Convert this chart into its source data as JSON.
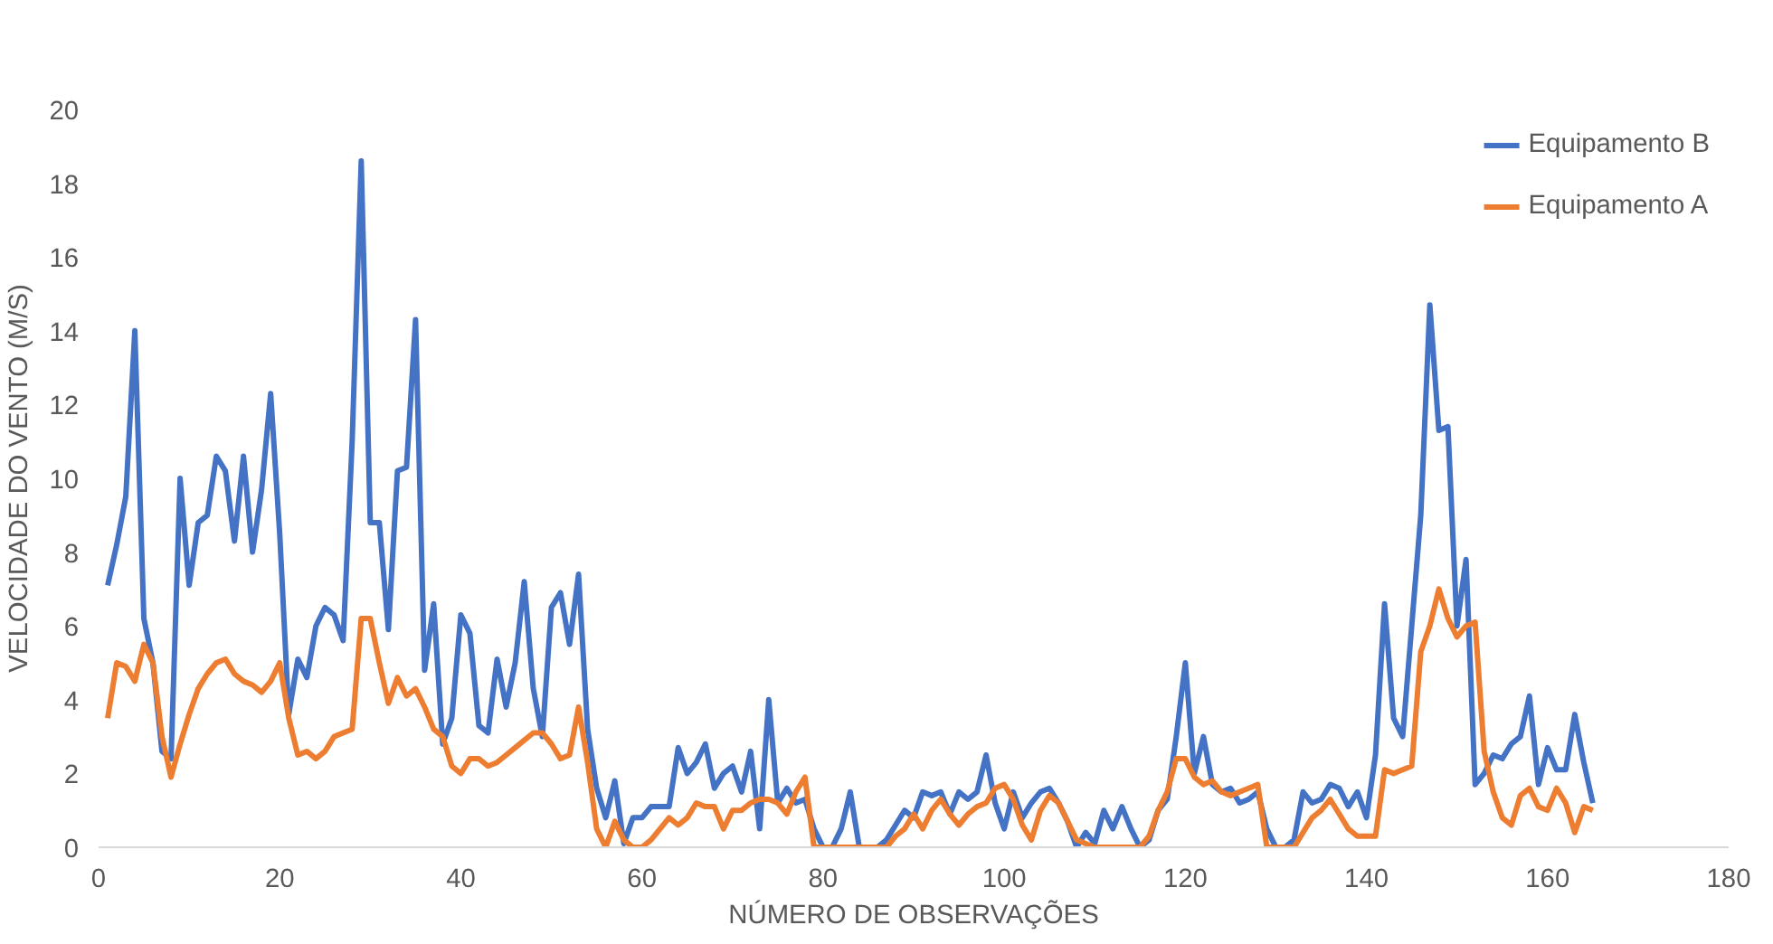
{
  "chart_data": {
    "type": "line",
    "xlabel": "NÚMERO DE OBSERVAÇÕES",
    "ylabel": "VELOCIDADE DO VENTO (M/S)",
    "x": [
      1,
      2,
      3,
      4,
      5,
      6,
      7,
      8,
      9,
      10,
      11,
      12,
      13,
      14,
      15,
      16,
      17,
      18,
      19,
      20,
      21,
      22,
      23,
      24,
      25,
      26,
      27,
      28,
      29,
      30,
      31,
      32,
      33,
      34,
      35,
      36,
      37,
      38,
      39,
      40,
      41,
      42,
      43,
      44,
      45,
      46,
      47,
      48,
      49,
      50,
      51,
      52,
      53,
      54,
      55,
      56,
      57,
      58,
      59,
      60,
      61,
      62,
      63,
      64,
      65,
      66,
      67,
      68,
      69,
      70,
      71,
      72,
      73,
      74,
      75,
      76,
      77,
      78,
      79,
      80,
      81,
      82,
      83,
      84,
      85,
      86,
      87,
      88,
      89,
      90,
      91,
      92,
      93,
      94,
      95,
      96,
      97,
      98,
      99,
      100,
      101,
      102,
      103,
      104,
      105,
      106,
      107,
      108,
      109,
      110,
      111,
      112,
      113,
      114,
      115,
      116,
      117,
      118,
      119,
      120,
      121,
      122,
      123,
      124,
      125,
      126,
      127,
      128,
      129,
      130,
      131,
      132,
      133,
      134,
      135,
      136,
      137,
      138,
      139,
      140,
      141,
      142,
      143,
      144,
      145,
      146,
      147,
      148,
      149,
      150,
      151,
      152,
      153,
      154,
      155,
      156,
      157,
      158,
      159,
      160,
      161,
      162,
      163,
      164,
      165
    ],
    "series": [
      {
        "name": "Equipamento B",
        "color": "#4472c4",
        "values": [
          7.1,
          8.2,
          9.5,
          14,
          6.2,
          5,
          2.6,
          2.4,
          10,
          7.1,
          8.8,
          9,
          10.6,
          10.2,
          8.3,
          10.6,
          8,
          9.7,
          12.3,
          8.5,
          3.6,
          5.1,
          4.6,
          6,
          6.5,
          6.3,
          5.6,
          11,
          18.6,
          8.8,
          8.8,
          5.9,
          10.2,
          10.3,
          14.3,
          4.8,
          6.6,
          2.8,
          3.5,
          6.3,
          5.8,
          3.3,
          3.1,
          5.1,
          3.8,
          5,
          7.2,
          4.3,
          3,
          6.5,
          6.9,
          5.5,
          7.4,
          3.2,
          1.6,
          0.8,
          1.8,
          0.1,
          0.8,
          0.8,
          1.1,
          1.1,
          1.1,
          2.7,
          2,
          2.3,
          2.8,
          1.6,
          2,
          2.2,
          1.5,
          2.6,
          0.5,
          4,
          1.2,
          1.6,
          1.2,
          1.3,
          0.5,
          0,
          0,
          0.5,
          1.5,
          0,
          0,
          0,
          0.2,
          0.6,
          1,
          0.8,
          1.5,
          1.4,
          1.5,
          0.9,
          1.5,
          1.3,
          1.5,
          2.5,
          1.2,
          0.5,
          1.5,
          0.8,
          1.2,
          1.5,
          1.6,
          1.2,
          0.7,
          0,
          0.4,
          0.1,
          1,
          0.5,
          1.1,
          0.5,
          0,
          0.2,
          1,
          1.3,
          3,
          5,
          2,
          3,
          1.7,
          1.5,
          1.6,
          1.2,
          1.3,
          1.5,
          0.5,
          0,
          0,
          0.2,
          1.5,
          1.2,
          1.3,
          1.7,
          1.6,
          1.1,
          1.5,
          0.8,
          2.5,
          6.6,
          3.5,
          3,
          6,
          9,
          14.7,
          11.3,
          11.4,
          6,
          7.8,
          1.7,
          2,
          2.5,
          2.4,
          2.8,
          3,
          4.1,
          1.7,
          2.7,
          2.1,
          2.1,
          3.6,
          2.3,
          1.2
        ]
      },
      {
        "name": "Equipamento A",
        "color": "#ed7d31",
        "values": [
          3.5,
          5,
          4.9,
          4.5,
          5.5,
          5,
          3,
          1.9,
          2.8,
          3.6,
          4.3,
          4.7,
          5,
          5.1,
          4.7,
          4.5,
          4.4,
          4.2,
          4.5,
          5,
          3.5,
          2.5,
          2.6,
          2.4,
          2.6,
          3,
          3.1,
          3.2,
          6.2,
          6.2,
          5,
          3.9,
          4.6,
          4.1,
          4.3,
          3.8,
          3.2,
          3,
          2.2,
          2,
          2.4,
          2.4,
          2.2,
          2.3,
          2.5,
          2.7,
          2.9,
          3.1,
          3.1,
          2.8,
          2.4,
          2.5,
          3.8,
          2.3,
          0.5,
          0,
          0.7,
          0.2,
          0,
          0,
          0.2,
          0.5,
          0.8,
          0.6,
          0.8,
          1.2,
          1.1,
          1.1,
          0.5,
          1,
          1,
          1.2,
          1.3,
          1.3,
          1.2,
          0.9,
          1.5,
          1.9,
          0,
          0,
          0,
          0,
          0,
          0,
          0,
          0,
          0,
          0.3,
          0.5,
          0.9,
          0.5,
          1,
          1.3,
          0.9,
          0.6,
          0.9,
          1.1,
          1.2,
          1.6,
          1.7,
          1.3,
          0.6,
          0.2,
          1,
          1.4,
          1.2,
          0.7,
          0.2,
          0.1,
          0,
          0,
          0,
          0,
          0,
          0,
          0.3,
          1,
          1.5,
          2.4,
          2.4,
          1.9,
          1.7,
          1.8,
          1.5,
          1.4,
          1.5,
          1.6,
          1.7,
          0,
          0,
          0,
          0,
          0.4,
          0.8,
          1,
          1.3,
          0.9,
          0.5,
          0.3,
          0.3,
          0.3,
          2.1,
          2,
          2.1,
          2.2,
          5.3,
          6,
          7,
          6.2,
          5.7,
          6,
          6.1,
          2.6,
          1.5,
          0.8,
          0.6,
          1.4,
          1.6,
          1.1,
          1,
          1.6,
          1.2,
          0.4,
          1.1,
          1
        ]
      }
    ],
    "xlim": [
      0,
      180
    ],
    "xticks": [
      0,
      20,
      40,
      60,
      80,
      100,
      120,
      140,
      160,
      180
    ],
    "ylim": [
      0,
      20
    ],
    "yticks": [
      0,
      2,
      4,
      6,
      8,
      10,
      12,
      14,
      16,
      18,
      20
    ],
    "grid": false,
    "legend": "top right"
  }
}
